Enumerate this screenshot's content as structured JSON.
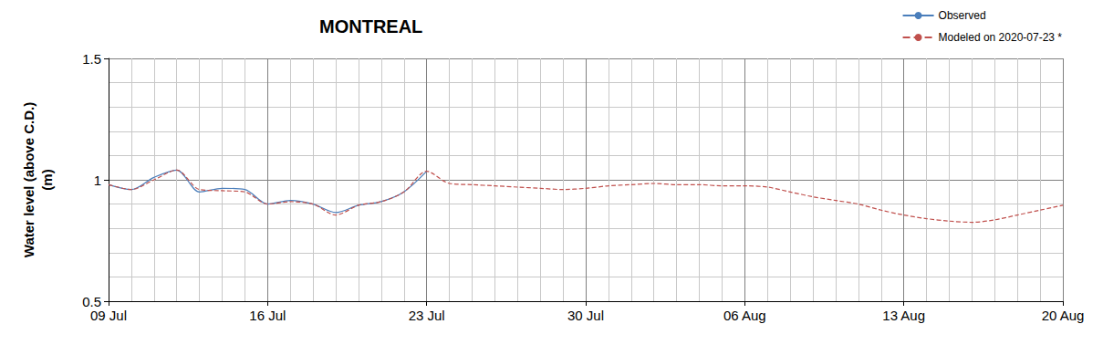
{
  "chart_data": {
    "type": "line",
    "title": "MONTREAL",
    "y_label": "Water level (above C.D.)\n(m)",
    "categories": [
      "09 Jul",
      null,
      null,
      null,
      null,
      null,
      null,
      "16 Jul",
      null,
      null,
      null,
      null,
      null,
      null,
      "23 Jul",
      null,
      null,
      null,
      null,
      null,
      null,
      "30 Jul",
      null,
      null,
      null,
      null,
      null,
      null,
      "06 Aug",
      null,
      null,
      null,
      null,
      null,
      null,
      "13 Aug",
      null,
      null,
      null,
      null,
      null,
      null,
      "20 Aug"
    ],
    "series": [
      {
        "name": "Observed",
        "color": "#4a7ebb",
        "line_style": "solid",
        "values": [
          0.98,
          0.96,
          1.01,
          1.04,
          0.95,
          0.965,
          0.96,
          0.9,
          0.915,
          0.9,
          0.865,
          0.895,
          0.91,
          0.95,
          1.035,
          null,
          null,
          null,
          null,
          null,
          null,
          null,
          null,
          null,
          null,
          null,
          null,
          null,
          null,
          null,
          null,
          null,
          null,
          null,
          null,
          null,
          null,
          null,
          null,
          null,
          null,
          null,
          null
        ]
      },
      {
        "name": "Modeled on 2020-07-23 *",
        "color": "#c0504d",
        "line_style": "dashed",
        "values": [
          0.98,
          0.96,
          1.0,
          1.04,
          0.96,
          0.955,
          0.95,
          0.9,
          0.91,
          0.9,
          0.855,
          0.895,
          0.91,
          0.95,
          1.035,
          0.985,
          0.98,
          0.975,
          0.97,
          0.965,
          0.96,
          0.965,
          0.975,
          0.98,
          0.985,
          0.98,
          0.98,
          0.975,
          0.975,
          0.97,
          0.95,
          0.93,
          0.915,
          0.9,
          0.875,
          0.855,
          0.84,
          0.83,
          0.825,
          0.835,
          0.855,
          0.875,
          0.895
        ]
      }
    ],
    "ylim": [
      0.5,
      1.5
    ],
    "yticks": [
      0.5,
      1,
      1.5
    ],
    "grid": true,
    "legend": "upper right"
  }
}
